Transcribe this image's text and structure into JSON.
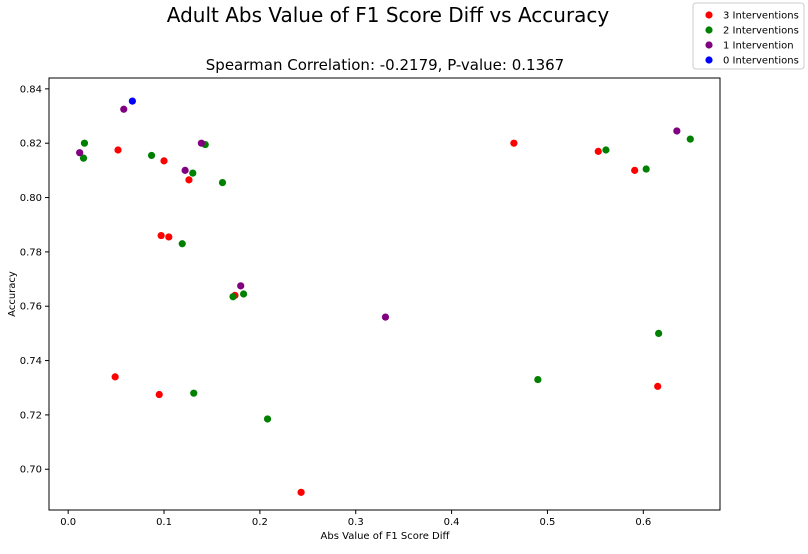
{
  "chart_data": {
    "type": "scatter",
    "title": "Adult Abs Value of F1 Score Diff vs Accuracy",
    "subtitle": "Spearman Correlation: -0.2179, P-value: 0.1367",
    "xlabel": "Abs Value of F1 Score Diff",
    "ylabel": "Accuracy",
    "xlim": [
      -0.02,
      0.68
    ],
    "ylim": [
      0.685,
      0.844
    ],
    "xticks": [
      0.0,
      0.1,
      0.2,
      0.3,
      0.4,
      0.5,
      0.6
    ],
    "xtick_labels": [
      "0.0",
      "0.1",
      "0.2",
      "0.3",
      "0.4",
      "0.5",
      "0.6"
    ],
    "yticks": [
      0.7,
      0.72,
      0.74,
      0.76,
      0.78,
      0.8,
      0.82,
      0.84
    ],
    "ytick_labels": [
      "0.70",
      "0.72",
      "0.74",
      "0.76",
      "0.78",
      "0.80",
      "0.82",
      "0.84"
    ],
    "grid": false,
    "legend_position": "top-right",
    "series": [
      {
        "name": "3 Interventions",
        "color": "#ff0000",
        "points": [
          [
            0.052,
            0.8175
          ],
          [
            0.1,
            0.8135
          ],
          [
            0.126,
            0.8065
          ],
          [
            0.097,
            0.786
          ],
          [
            0.105,
            0.7855
          ],
          [
            0.174,
            0.764
          ],
          [
            0.049,
            0.734
          ],
          [
            0.095,
            0.7275
          ],
          [
            0.243,
            0.6915
          ],
          [
            0.465,
            0.82
          ],
          [
            0.553,
            0.817
          ],
          [
            0.591,
            0.81
          ],
          [
            0.615,
            0.7305
          ]
        ]
      },
      {
        "name": "2 Interventions",
        "color": "#008000",
        "points": [
          [
            0.017,
            0.82
          ],
          [
            0.016,
            0.8145
          ],
          [
            0.087,
            0.8155
          ],
          [
            0.143,
            0.8195
          ],
          [
            0.13,
            0.809
          ],
          [
            0.161,
            0.8055
          ],
          [
            0.119,
            0.783
          ],
          [
            0.183,
            0.7645
          ],
          [
            0.172,
            0.7635
          ],
          [
            0.131,
            0.728
          ],
          [
            0.208,
            0.7185
          ],
          [
            0.49,
            0.733
          ],
          [
            0.561,
            0.8175
          ],
          [
            0.603,
            0.8105
          ],
          [
            0.616,
            0.75
          ],
          [
            0.649,
            0.8215
          ]
        ]
      },
      {
        "name": "1 Intervention",
        "color": "#800080",
        "points": [
          [
            0.012,
            0.8165
          ],
          [
            0.058,
            0.8325
          ],
          [
            0.122,
            0.81
          ],
          [
            0.139,
            0.82
          ],
          [
            0.18,
            0.7675
          ],
          [
            0.331,
            0.756
          ],
          [
            0.635,
            0.8245
          ]
        ]
      },
      {
        "name": "0 Interventions",
        "color": "#0000ff",
        "points": [
          [
            0.067,
            0.8355
          ]
        ]
      }
    ]
  }
}
